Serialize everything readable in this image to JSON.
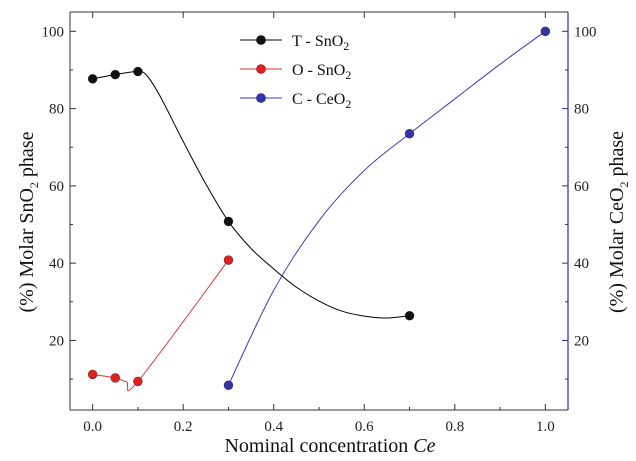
{
  "chart_data": {
    "type": "line",
    "xlabel": {
      "text": "Nominal concentration ",
      "italic": "Ce"
    },
    "ylabel_left": {
      "pre": "(%) Molar SnO",
      "sub": "2",
      "post": " phase"
    },
    "ylabel_right": {
      "pre": "(%) Molar CeO",
      "sub": "2",
      "post": " phase"
    },
    "xlim": [
      -0.05,
      1.05
    ],
    "ylim_left": [
      2,
      105
    ],
    "ylim_right": [
      2,
      105
    ],
    "x_ticks": [
      "0.0",
      "0.2",
      "0.4",
      "0.6",
      "0.8",
      "1.0"
    ],
    "x_tick_values": [
      0.0,
      0.2,
      0.4,
      0.6,
      0.8,
      1.0
    ],
    "y_left_ticks": [
      "20",
      "40",
      "60",
      "80",
      "100"
    ],
    "y_left_tick_values": [
      20,
      40,
      60,
      80,
      100
    ],
    "y_right_ticks": [
      "20",
      "40",
      "60",
      "80",
      "100"
    ],
    "y_right_tick_values": [
      20,
      40,
      60,
      80,
      100
    ],
    "right_axis_color": "#2e2e8f",
    "legend_position": "top-center",
    "series": [
      {
        "name": {
          "pre": "T - SnO",
          "sub": "2"
        },
        "axis": "left",
        "color": "#000000",
        "marker_color": "#111111",
        "points": [
          [
            0.0,
            87.7
          ],
          [
            0.05,
            88.8
          ],
          [
            0.1,
            89.6
          ],
          [
            0.3,
            50.8
          ],
          [
            0.7,
            26.4
          ]
        ],
        "curve": [
          [
            0.0,
            87.7
          ],
          [
            0.05,
            88.8
          ],
          [
            0.1,
            89.6
          ],
          [
            0.12,
            88.5
          ],
          [
            0.15,
            83
          ],
          [
            0.2,
            71.5
          ],
          [
            0.25,
            60.5
          ],
          [
            0.3,
            50.8
          ],
          [
            0.35,
            43.8
          ],
          [
            0.4,
            38.5
          ],
          [
            0.45,
            33.8
          ],
          [
            0.5,
            30.2
          ],
          [
            0.55,
            27.6
          ],
          [
            0.6,
            26.3
          ],
          [
            0.65,
            25.8
          ],
          [
            0.7,
            26.4
          ]
        ]
      },
      {
        "name": {
          "pre": "O - SnO",
          "sub": "2"
        },
        "axis": "left",
        "color": "#e23333",
        "marker_color": "#e02020",
        "points": [
          [
            0.0,
            11.2
          ],
          [
            0.05,
            10.3
          ],
          [
            0.1,
            9.4
          ],
          [
            0.3,
            40.8
          ]
        ],
        "curve": [
          [
            0.0,
            11.2
          ],
          [
            0.05,
            10.3
          ],
          [
            0.075,
            9.3
          ],
          [
            0.1,
            9.4
          ],
          [
            0.3,
            40.8
          ]
        ]
      },
      {
        "name": {
          "pre": "C - CeO",
          "sub": "2"
        },
        "axis": "right",
        "color": "#3b3bb5",
        "marker_color": "#3434a8",
        "points": [
          [
            0.3,
            8.4
          ],
          [
            0.7,
            73.5
          ],
          [
            1.0,
            100
          ]
        ],
        "curve": [
          [
            0.3,
            8.4
          ],
          [
            0.4,
            33
          ],
          [
            0.5,
            51
          ],
          [
            0.6,
            64
          ],
          [
            0.7,
            73.5
          ],
          [
            0.8,
            82.5
          ],
          [
            0.9,
            91.5
          ],
          [
            1.0,
            100
          ]
        ]
      }
    ]
  }
}
